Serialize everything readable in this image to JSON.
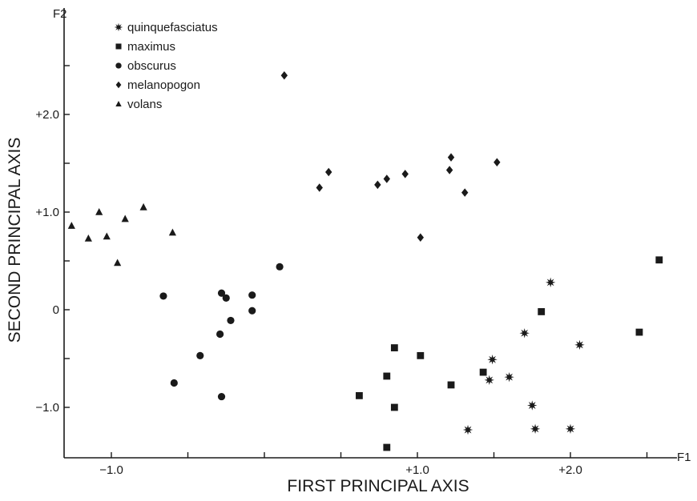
{
  "chart_data": {
    "type": "scatter",
    "xlabel": "FIRST PRINCIPAL AXIS",
    "ylabel": "SECOND PRINCIPAL AXIS",
    "x_axis_name": "F1",
    "y_axis_name": "F2",
    "xlim": [
      -1.3,
      2.6
    ],
    "ylim": [
      -1.5,
      2.7
    ],
    "x_ticks": [
      -1.0,
      -0.5,
      0,
      0.5,
      1.0,
      1.5,
      2.0,
      2.5
    ],
    "x_tick_labels": [
      {
        "value": -1.0,
        "label": "−1.0"
      },
      {
        "value": 1.0,
        "label": "+1.0"
      },
      {
        "value": 2.0,
        "label": "+2.0"
      }
    ],
    "y_ticks": [
      -1.0,
      -0.5,
      0,
      0.5,
      1.0,
      1.5,
      2.0,
      2.5
    ],
    "y_tick_labels": [
      {
        "value": 2.0,
        "label": "+2.0"
      },
      {
        "value": 1.0,
        "label": "+1.0"
      },
      {
        "value": 0,
        "label": "0"
      },
      {
        "value": -1.0,
        "label": "−1.0"
      }
    ],
    "grid": false,
    "legend": "top-left",
    "series": [
      {
        "name": "quinquefasciatus",
        "marker": "star",
        "points": [
          [
            1.87,
            0.28
          ],
          [
            1.7,
            -0.24
          ],
          [
            2.06,
            -0.36
          ],
          [
            1.49,
            -0.51
          ],
          [
            1.47,
            -0.72
          ],
          [
            1.6,
            -0.69
          ],
          [
            1.75,
            -0.98
          ],
          [
            1.33,
            -1.23
          ],
          [
            1.77,
            -1.22
          ],
          [
            2.0,
            -1.22
          ]
        ]
      },
      {
        "name": "maximus",
        "marker": "square",
        "points": [
          [
            2.58,
            0.51
          ],
          [
            1.81,
            -0.02
          ],
          [
            2.45,
            -0.23
          ],
          [
            0.85,
            -0.39
          ],
          [
            1.02,
            -0.47
          ],
          [
            1.43,
            -0.64
          ],
          [
            0.8,
            -0.68
          ],
          [
            1.22,
            -0.77
          ],
          [
            0.62,
            -0.88
          ],
          [
            0.85,
            -1.0
          ],
          [
            0.8,
            -1.41
          ]
        ]
      },
      {
        "name": "obscurus",
        "marker": "circle",
        "points": [
          [
            0.1,
            0.44
          ],
          [
            -0.66,
            0.14
          ],
          [
            -0.28,
            0.17
          ],
          [
            -0.25,
            0.12
          ],
          [
            -0.08,
            0.15
          ],
          [
            -0.08,
            -0.01
          ],
          [
            -0.22,
            -0.11
          ],
          [
            -0.29,
            -0.25
          ],
          [
            -0.42,
            -0.47
          ],
          [
            -0.59,
            -0.75
          ],
          [
            -0.28,
            -0.89
          ]
        ]
      },
      {
        "name": "melanopogon",
        "marker": "diamond",
        "points": [
          [
            0.13,
            2.4
          ],
          [
            0.42,
            1.41
          ],
          [
            0.36,
            1.25
          ],
          [
            0.74,
            1.28
          ],
          [
            0.8,
            1.34
          ],
          [
            0.92,
            1.39
          ],
          [
            1.02,
            0.74
          ],
          [
            1.21,
            1.43
          ],
          [
            1.22,
            1.56
          ],
          [
            1.31,
            1.2
          ],
          [
            1.52,
            1.51
          ]
        ]
      },
      {
        "name": "volans",
        "marker": "triangle",
        "points": [
          [
            -1.26,
            0.86
          ],
          [
            -1.15,
            0.73
          ],
          [
            -1.08,
            1.0
          ],
          [
            -1.03,
            0.75
          ],
          [
            -0.96,
            0.48
          ],
          [
            -0.91,
            0.93
          ],
          [
            -0.79,
            1.05
          ],
          [
            -0.6,
            0.79
          ]
        ]
      }
    ]
  }
}
